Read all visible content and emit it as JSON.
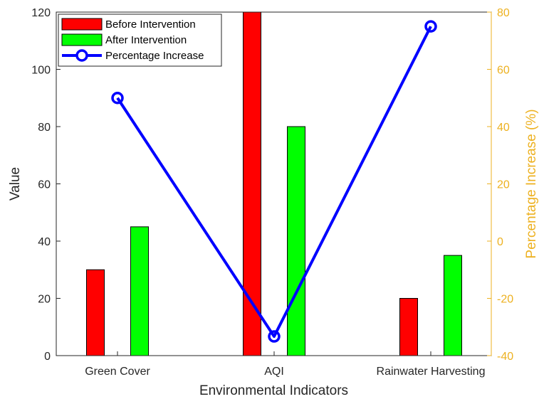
{
  "chart_data": {
    "type": "bar",
    "categories": [
      "Green Cover",
      "AQI",
      "Rainwater Harvesting"
    ],
    "series": [
      {
        "name": "Before Intervention",
        "values": [
          30,
          120,
          20
        ],
        "color": "#ff0000",
        "axis": "left"
      },
      {
        "name": "After Intervention",
        "values": [
          45,
          80,
          35
        ],
        "color": "#00ff00",
        "axis": "left"
      },
      {
        "name": "Percentage Increase",
        "type": "line",
        "values": [
          50,
          -33.3,
          75
        ],
        "color": "#0000ff",
        "axis": "right",
        "marker": "circle"
      }
    ],
    "xlabel": "Environmental Indicators",
    "ylabel": "Value",
    "y2label": "Percentage Increase (%)",
    "ylim": [
      0,
      120
    ],
    "yticks": [
      0,
      20,
      40,
      60,
      80,
      100,
      120
    ],
    "y2lim": [
      -40,
      80
    ],
    "y2ticks": [
      -40,
      -20,
      0,
      20,
      40,
      60,
      80
    ],
    "y2color": "#edb120",
    "grid": false,
    "legend": "top-left"
  }
}
